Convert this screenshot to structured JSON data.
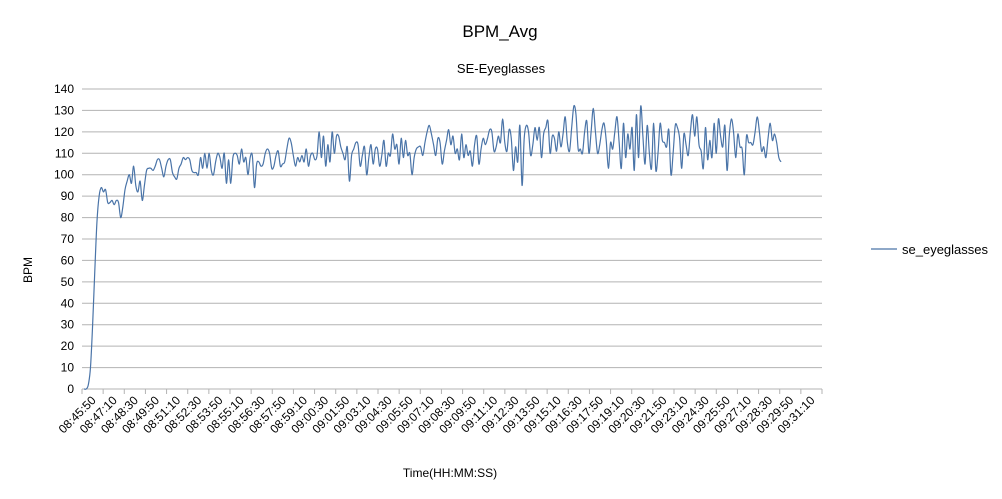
{
  "chart_data": {
    "type": "line",
    "title": "BPM_Avg",
    "subtitle": "SE-Eyeglasses",
    "xlabel": "Time(HH:MM:SS)",
    "ylabel": "BPM",
    "ylim": [
      0,
      140
    ],
    "yticks": [
      0,
      10,
      20,
      30,
      40,
      50,
      60,
      70,
      80,
      90,
      100,
      110,
      120,
      130,
      140
    ],
    "grid": true,
    "legend_position": "right",
    "line_color": "#4a74a8",
    "x_tick_labels": [
      "08:45:50",
      "08:47:10",
      "08:48:30",
      "08:49:50",
      "08:51:10",
      "08:52:30",
      "08:53:50",
      "08:55:10",
      "08:56:30",
      "08:57:50",
      "08:59:10",
      "09:00:30",
      "09:01:50",
      "09:03:10",
      "09:04:30",
      "09:05:50",
      "09:07:10",
      "09:08:30",
      "09:09:50",
      "09:11:10",
      "09:12:30",
      "09:13:50",
      "09:15:10",
      "09:16:30",
      "09:17:50",
      "09:19:10",
      "09:20:30",
      "09:21:50",
      "09:23:10",
      "09:24:30",
      "09:25:50",
      "09:27:10",
      "09:28:30",
      "09:29:50",
      "09:31:10"
    ],
    "series": [
      {
        "name": "se_eyeglasses",
        "values": [
          0,
          0,
          2,
          10,
          30,
          55,
          78,
          90,
          94,
          92,
          93,
          87,
          87,
          88,
          86,
          88,
          87,
          80,
          85,
          93,
          97,
          100,
          96,
          104,
          95,
          92,
          97,
          88,
          95,
          102,
          103,
          103,
          102,
          104,
          107,
          107,
          103,
          99,
          104,
          107,
          107,
          101,
          99,
          98,
          103,
          105,
          108,
          107,
          108,
          107,
          102,
          101,
          101,
          100,
          108,
          103,
          110,
          103,
          110,
          102,
          100,
          106,
          110,
          108,
          103,
          110,
          96,
          107,
          96,
          108,
          110,
          109,
          105,
          112,
          106,
          108,
          100,
          108,
          109,
          94,
          105,
          106,
          104,
          105,
          110,
          112,
          110,
          103,
          104,
          109,
          111,
          104,
          105,
          106,
          112,
          117,
          115,
          109,
          104,
          108,
          106,
          109,
          106,
          112,
          104,
          109,
          110,
          107,
          109,
          120,
          108,
          118,
          104,
          114,
          106,
          120,
          110,
          118,
          118,
          113,
          110,
          107,
          113,
          97,
          109,
          112,
          115,
          114,
          104,
          109,
          113,
          100,
          108,
          114,
          105,
          112,
          112,
          104,
          109,
          116,
          104,
          110,
          109,
          119,
          112,
          114,
          105,
          117,
          108,
          116,
          109,
          110,
          100,
          108,
          112,
          113,
          113,
          109,
          115,
          120,
          123,
          119,
          114,
          109,
          117,
          115,
          105,
          111,
          116,
          121,
          114,
          118,
          110,
          112,
          107,
          119,
          108,
          114,
          109,
          111,
          104,
          114,
          118,
          105,
          112,
          117,
          114,
          117,
          121,
          120,
          111,
          113,
          118,
          115,
          126,
          115,
          111,
          121,
          117,
          102,
          113,
          106,
          123,
          95,
          117,
          123,
          120,
          109,
          114,
          122,
          116,
          122,
          108,
          119,
          122,
          125,
          110,
          118,
          117,
          111,
          120,
          113,
          119,
          127,
          115,
          111,
          122,
          132,
          128,
          112,
          112,
          110,
          120,
          125,
          110,
          120,
          131,
          120,
          110,
          114,
          121,
          124,
          116,
          103,
          115,
          112,
          120,
          127,
          115,
          103,
          124,
          108,
          119,
          112,
          122,
          102,
          128,
          108,
          132,
          118,
          105,
          123,
          110,
          103,
          124,
          102,
          110,
          124,
          116,
          115,
          113,
          121,
          100,
          110,
          123,
          122,
          117,
          103,
          119,
          114,
          109,
          120,
          128,
          118,
          127,
          114,
          111,
          103,
          122,
          107,
          116,
          108,
          124,
          110,
          126,
          118,
          113,
          123,
          102,
          118,
          126,
          120,
          108,
          119,
          113,
          112,
          100,
          118,
          115,
          115,
          114,
          120,
          127,
          120,
          111,
          113,
          108,
          117,
          124,
          116,
          119,
          115,
          108,
          106
        ]
      }
    ]
  }
}
